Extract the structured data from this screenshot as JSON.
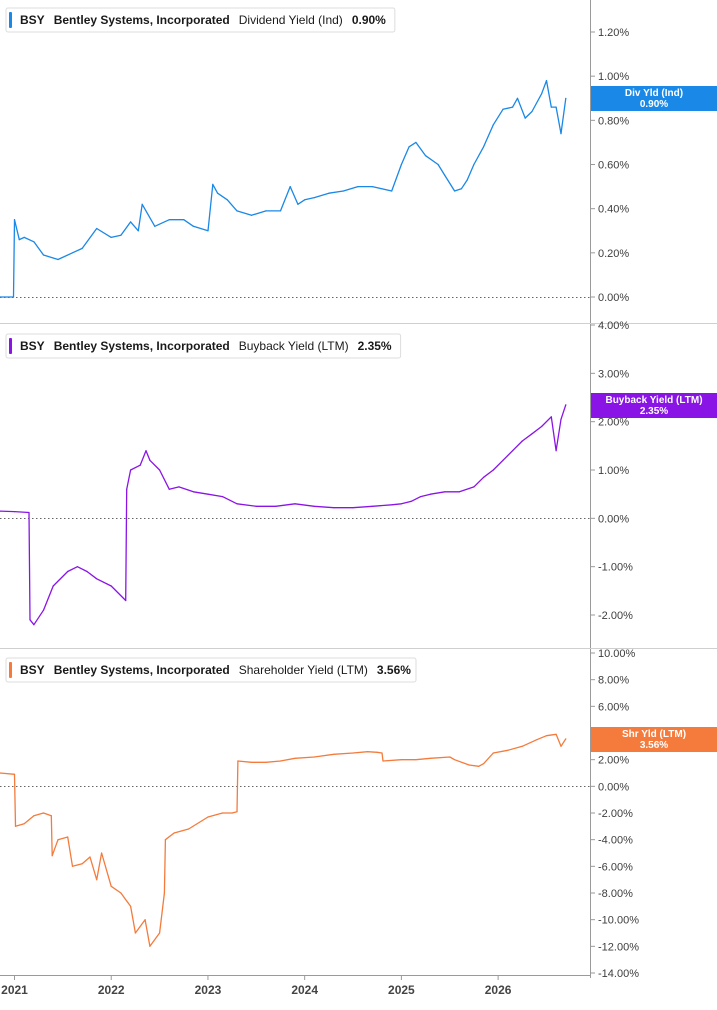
{
  "chart_data": [
    {
      "type": "line",
      "ticker": "BSY",
      "company": "Bentley Systems, Incorporated",
      "metric": "Dividend Yield (Ind)",
      "current_value": "0.90%",
      "tag_label": "Div Yld (Ind)",
      "tag_value": "0.90%",
      "color": "#1a88e6",
      "y_unit": "%",
      "ylim": [
        0,
        1.2
      ],
      "yticks": [
        {
          "value": 0.0,
          "label": "0.00%"
        },
        {
          "value": 0.2,
          "label": "0.20%"
        },
        {
          "value": 0.4,
          "label": "0.40%"
        },
        {
          "value": 0.6,
          "label": "0.60%"
        },
        {
          "value": 0.8,
          "label": "0.80%"
        },
        {
          "value": 1.0,
          "label": "1.00%"
        },
        {
          "value": 1.2,
          "label": "1.20%"
        }
      ],
      "zero_line": true,
      "series": [
        {
          "x": [
            2020.85,
            2020.99,
            2021.0,
            2021.05,
            2021.1,
            2021.2,
            2021.3,
            2021.45,
            2021.6,
            2021.7,
            2021.85,
            2022.0,
            2022.1,
            2022.2,
            2022.28,
            2022.32,
            2022.45,
            2022.6,
            2022.75,
            2022.85,
            2023.0,
            2023.05,
            2023.1,
            2023.2,
            2023.3,
            2023.45,
            2023.6,
            2023.75,
            2023.85,
            2023.93,
            2024.0,
            2024.1,
            2024.25,
            2024.4,
            2024.55,
            2024.7,
            2024.9,
            2025.0,
            2025.08,
            2025.15,
            2025.25,
            2025.38,
            2025.45,
            2025.55,
            2025.62,
            2025.68,
            2025.75,
            2025.85,
            2025.95,
            2026.05,
            2026.15,
            2026.2,
            2026.28,
            2026.35,
            2026.45,
            2026.5,
            2026.55,
            2026.6,
            2026.65,
            2026.7
          ],
          "values": [
            0.0,
            0.0,
            0.35,
            0.26,
            0.27,
            0.25,
            0.19,
            0.17,
            0.2,
            0.22,
            0.31,
            0.27,
            0.28,
            0.34,
            0.3,
            0.42,
            0.32,
            0.35,
            0.35,
            0.32,
            0.3,
            0.51,
            0.47,
            0.44,
            0.39,
            0.37,
            0.39,
            0.39,
            0.5,
            0.42,
            0.44,
            0.45,
            0.47,
            0.48,
            0.5,
            0.5,
            0.48,
            0.6,
            0.68,
            0.7,
            0.64,
            0.6,
            0.55,
            0.48,
            0.49,
            0.53,
            0.6,
            0.68,
            0.78,
            0.85,
            0.86,
            0.9,
            0.81,
            0.84,
            0.92,
            0.98,
            0.86,
            0.86,
            0.74,
            0.9
          ]
        }
      ]
    },
    {
      "type": "line",
      "ticker": "BSY",
      "company": "Bentley Systems, Incorporated",
      "metric": "Buyback Yield (LTM)",
      "current_value": "2.35%",
      "tag_label": "Buyback Yield (LTM)",
      "tag_value": "2.35%",
      "color": "#8a14e6",
      "y_unit": "%",
      "ylim": [
        -2.0,
        4.0
      ],
      "yticks": [
        {
          "value": -2.0,
          "label": "-2.00%"
        },
        {
          "value": -1.0,
          "label": "-1.00%"
        },
        {
          "value": 0.0,
          "label": "0.00%"
        },
        {
          "value": 1.0,
          "label": "1.00%"
        },
        {
          "value": 2.0,
          "label": "2.00%"
        },
        {
          "value": 3.0,
          "label": "3.00%"
        },
        {
          "value": 4.0,
          "label": "4.00%"
        }
      ],
      "zero_line": true,
      "series": [
        {
          "x": [
            2020.85,
            2021.0,
            2021.15,
            2021.16,
            2021.2,
            2021.3,
            2021.4,
            2021.55,
            2021.65,
            2021.75,
            2021.85,
            2022.0,
            2022.15,
            2022.16,
            2022.2,
            2022.3,
            2022.36,
            2022.4,
            2022.5,
            2022.6,
            2022.7,
            2022.85,
            2023.0,
            2023.15,
            2023.3,
            2023.5,
            2023.7,
            2023.9,
            2024.1,
            2024.3,
            2024.5,
            2024.7,
            2024.9,
            2025.0,
            2025.1,
            2025.2,
            2025.3,
            2025.45,
            2025.6,
            2025.75,
            2025.85,
            2025.95,
            2026.05,
            2026.15,
            2026.25,
            2026.35,
            2026.45,
            2026.55,
            2026.6,
            2026.65,
            2026.7
          ],
          "values": [
            0.15,
            0.14,
            0.12,
            -2.1,
            -2.2,
            -1.9,
            -1.4,
            -1.1,
            -1.0,
            -1.1,
            -1.25,
            -1.4,
            -1.7,
            0.6,
            1.0,
            1.1,
            1.4,
            1.2,
            1.0,
            0.6,
            0.65,
            0.55,
            0.5,
            0.45,
            0.3,
            0.25,
            0.25,
            0.3,
            0.25,
            0.22,
            0.22,
            0.25,
            0.28,
            0.3,
            0.35,
            0.45,
            0.5,
            0.55,
            0.55,
            0.65,
            0.85,
            1.0,
            1.2,
            1.4,
            1.6,
            1.75,
            1.9,
            2.1,
            1.4,
            2.05,
            2.35
          ]
        }
      ]
    },
    {
      "type": "line",
      "ticker": "BSY",
      "company": "Bentley Systems, Incorporated",
      "metric": "Shareholder Yield (LTM)",
      "current_value": "3.56%",
      "tag_label": "Shr Yld (LTM)",
      "tag_value": "3.56%",
      "color": "#f47b3c",
      "y_unit": "%",
      "ylim": [
        -14.0,
        10.0
      ],
      "yticks": [
        {
          "value": -14.0,
          "label": "-14.00%"
        },
        {
          "value": -12.0,
          "label": "-12.00%"
        },
        {
          "value": -10.0,
          "label": "-10.00%"
        },
        {
          "value": -8.0,
          "label": "-8.00%"
        },
        {
          "value": -6.0,
          "label": "-6.00%"
        },
        {
          "value": -4.0,
          "label": "-4.00%"
        },
        {
          "value": -2.0,
          "label": "-2.00%"
        },
        {
          "value": 0.0,
          "label": "0.00%"
        },
        {
          "value": 2.0,
          "label": "2.00%"
        },
        {
          "value": 4.0,
          "label": "4.00%"
        },
        {
          "value": 6.0,
          "label": "6.00%"
        },
        {
          "value": 8.0,
          "label": "8.00%"
        },
        {
          "value": 10.0,
          "label": "10.00%"
        }
      ],
      "zero_line": true,
      "series": [
        {
          "x": [
            2020.85,
            2021.0,
            2021.01,
            2021.1,
            2021.2,
            2021.3,
            2021.38,
            2021.39,
            2021.45,
            2021.55,
            2021.6,
            2021.7,
            2021.78,
            2021.85,
            2021.9,
            2022.0,
            2022.1,
            2022.2,
            2022.25,
            2022.35,
            2022.4,
            2022.5,
            2022.55,
            2022.56,
            2022.65,
            2022.8,
            2023.0,
            2023.15,
            2023.25,
            2023.3,
            2023.31,
            2023.45,
            2023.6,
            2023.75,
            2023.9,
            2024.1,
            2024.3,
            2024.5,
            2024.65,
            2024.75,
            2024.8,
            2024.81,
            2025.0,
            2025.15,
            2025.3,
            2025.5,
            2025.55,
            2025.7,
            2025.8,
            2025.85,
            2025.95,
            2026.1,
            2026.25,
            2026.4,
            2026.5,
            2026.6,
            2026.65,
            2026.7
          ],
          "values": [
            1.0,
            0.9,
            -3.0,
            -2.8,
            -2.2,
            -2.0,
            -2.2,
            -5.2,
            -4.0,
            -3.8,
            -6.0,
            -5.8,
            -5.3,
            -7.0,
            -5.0,
            -7.5,
            -8.0,
            -9.0,
            -11.0,
            -10.0,
            -12.0,
            -11.0,
            -8.0,
            -4.0,
            -3.5,
            -3.2,
            -2.3,
            -2.0,
            -2.0,
            -1.9,
            1.9,
            1.8,
            1.8,
            1.9,
            2.1,
            2.2,
            2.4,
            2.5,
            2.6,
            2.55,
            2.5,
            1.9,
            2.0,
            2.0,
            2.1,
            2.2,
            2.0,
            1.6,
            1.5,
            1.7,
            2.5,
            2.7,
            3.0,
            3.5,
            3.8,
            3.9,
            3.0,
            3.56
          ]
        }
      ]
    }
  ],
  "x_axis": {
    "ticks": [
      {
        "value": 2021,
        "label": "2021"
      },
      {
        "value": 2022,
        "label": "2022"
      },
      {
        "value": 2023,
        "label": "2023"
      },
      {
        "value": 2024,
        "label": "2024"
      },
      {
        "value": 2025,
        "label": "2025"
      },
      {
        "value": 2026,
        "label": "2026"
      }
    ]
  }
}
